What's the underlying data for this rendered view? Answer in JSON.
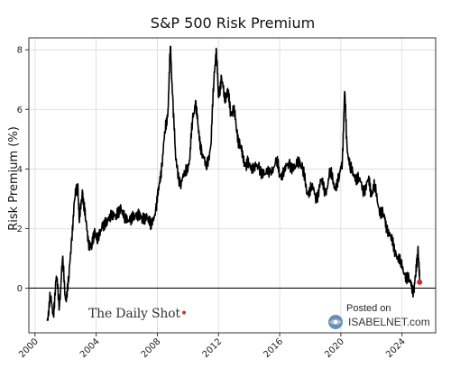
{
  "chart_data": {
    "type": "line",
    "title": "S&P 500 Risk Premium",
    "ylabel": "Risk Premium (%)",
    "xlabel": "",
    "xlim": [
      1999.6,
      2026.2
    ],
    "ylim": [
      -1.5,
      8.4
    ],
    "xticks": [
      2000,
      2004,
      2008,
      2012,
      2016,
      2020,
      2024
    ],
    "yticks": [
      0,
      2,
      4,
      6,
      8
    ],
    "grid": true,
    "series": [
      {
        "points": [
          [
            2000.8,
            -1.1
          ],
          [
            2001.0,
            -0.3
          ],
          [
            2001.2,
            -0.9
          ],
          [
            2001.4,
            0.4
          ],
          [
            2001.6,
            -0.6
          ],
          [
            2001.8,
            1.0
          ],
          [
            2002.0,
            -0.4
          ],
          [
            2002.2,
            0.2
          ],
          [
            2002.4,
            1.7
          ],
          [
            2002.6,
            3.0
          ],
          [
            2002.8,
            3.5
          ],
          [
            2002.9,
            2.2
          ],
          [
            2003.1,
            3.3
          ],
          [
            2003.3,
            2.3
          ],
          [
            2003.5,
            1.6
          ],
          [
            2003.7,
            1.3
          ],
          [
            2003.9,
            2.0
          ],
          [
            2004.1,
            1.5
          ],
          [
            2004.4,
            2.2
          ],
          [
            2004.7,
            2.1
          ],
          [
            2005.0,
            2.6
          ],
          [
            2005.3,
            2.3
          ],
          [
            2005.6,
            2.8
          ],
          [
            2005.9,
            2.2
          ],
          [
            2006.2,
            2.4
          ],
          [
            2006.5,
            2.3
          ],
          [
            2006.8,
            2.6
          ],
          [
            2007.0,
            2.2
          ],
          [
            2007.3,
            2.5
          ],
          [
            2007.6,
            2.0
          ],
          [
            2007.9,
            2.7
          ],
          [
            2008.1,
            3.3
          ],
          [
            2008.3,
            4.2
          ],
          [
            2008.5,
            5.2
          ],
          [
            2008.7,
            6.0
          ],
          [
            2008.85,
            8.1
          ],
          [
            2009.0,
            6.5
          ],
          [
            2009.2,
            4.3
          ],
          [
            2009.5,
            3.5
          ],
          [
            2009.8,
            3.8
          ],
          [
            2010.1,
            4.3
          ],
          [
            2010.3,
            5.6
          ],
          [
            2010.5,
            6.3
          ],
          [
            2010.7,
            5.2
          ],
          [
            2010.9,
            4.6
          ],
          [
            2011.2,
            4.0
          ],
          [
            2011.5,
            4.8
          ],
          [
            2011.7,
            7.0
          ],
          [
            2011.85,
            8.05
          ],
          [
            2012.0,
            6.4
          ],
          [
            2012.2,
            7.1
          ],
          [
            2012.4,
            6.3
          ],
          [
            2012.6,
            6.7
          ],
          [
            2012.8,
            5.8
          ],
          [
            2013.0,
            6.1
          ],
          [
            2013.2,
            5.2
          ],
          [
            2013.4,
            4.8
          ],
          [
            2013.6,
            4.4
          ],
          [
            2013.8,
            4.1
          ],
          [
            2014.0,
            4.2
          ],
          [
            2014.3,
            4.0
          ],
          [
            2014.6,
            4.1
          ],
          [
            2015.0,
            3.8
          ],
          [
            2015.4,
            3.9
          ],
          [
            2015.8,
            4.3
          ],
          [
            2016.0,
            3.8
          ],
          [
            2016.3,
            3.9
          ],
          [
            2016.6,
            4.2
          ],
          [
            2017.0,
            4.0
          ],
          [
            2017.3,
            4.3
          ],
          [
            2017.5,
            4.0
          ],
          [
            2017.8,
            3.2
          ],
          [
            2018.1,
            3.4
          ],
          [
            2018.4,
            3.0
          ],
          [
            2018.7,
            3.6
          ],
          [
            2019.0,
            3.2
          ],
          [
            2019.3,
            3.9
          ],
          [
            2019.6,
            3.4
          ],
          [
            2019.9,
            3.7
          ],
          [
            2020.1,
            4.3
          ],
          [
            2020.25,
            6.6
          ],
          [
            2020.4,
            4.8
          ],
          [
            2020.6,
            4.0
          ],
          [
            2020.9,
            3.8
          ],
          [
            2021.2,
            3.6
          ],
          [
            2021.5,
            3.3
          ],
          [
            2021.8,
            3.6
          ],
          [
            2022.0,
            3.2
          ],
          [
            2022.2,
            3.4
          ],
          [
            2022.5,
            2.7
          ],
          [
            2022.8,
            2.4
          ],
          [
            2023.0,
            2.1
          ],
          [
            2023.3,
            1.6
          ],
          [
            2023.6,
            1.2
          ],
          [
            2023.9,
            0.8
          ],
          [
            2024.2,
            0.5
          ],
          [
            2024.5,
            0.2
          ],
          [
            2024.75,
            -0.05
          ],
          [
            2024.9,
            0.4
          ],
          [
            2025.05,
            1.4
          ],
          [
            2025.15,
            0.2
          ]
        ]
      }
    ],
    "last_point_color": "#d62728",
    "line_color": "#000000"
  },
  "watermarks": {
    "daily_shot": "The Daily Shot",
    "posted_on": "Posted on",
    "isabelnet": "ISABELNET.com"
  }
}
